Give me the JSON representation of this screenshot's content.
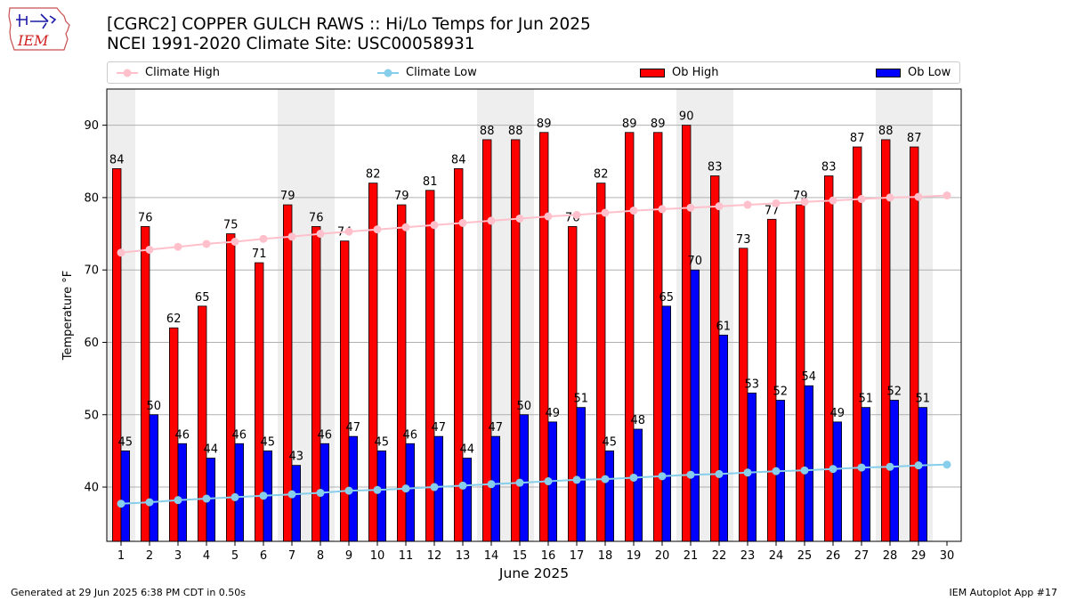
{
  "header": {
    "title_line1": "[CGRC2] COPPER GULCH RAWS :: Hi/Lo Temps for Jun 2025",
    "title_line2": "NCEI 1991-2020 Climate Site: USC00058931",
    "logo_text": "IEM"
  },
  "footer": {
    "generated": "Generated at 29 Jun 2025 6:38 PM CDT in 0.50s",
    "app": "IEM Autoplot App #17"
  },
  "legend": {
    "climate_high": "Climate High",
    "climate_low": "Climate Low",
    "ob_high": "Ob High",
    "ob_low": "Ob Low"
  },
  "colors": {
    "ob_high": "#ff0000",
    "ob_low": "#0000ff",
    "climate_high": "#ffc0cb",
    "climate_low": "#87ceeb",
    "weekend_band": "#eeeeee",
    "grid": "#b0b0b0"
  },
  "chart_data": {
    "type": "bar",
    "title": "[CGRC2] COPPER GULCH RAWS :: Hi/Lo Temps for Jun 2025",
    "subtitle": "NCEI 1991-2020 Climate Site: USC00058931",
    "xlabel": "June 2025",
    "ylabel": "Temperature °F",
    "ylim": [
      32.5,
      95
    ],
    "yticks": [
      40,
      50,
      60,
      70,
      80,
      90
    ],
    "grid": true,
    "legend_position": "top",
    "categories": [
      "1",
      "2",
      "3",
      "4",
      "5",
      "6",
      "7",
      "8",
      "9",
      "10",
      "11",
      "12",
      "13",
      "14",
      "15",
      "16",
      "17",
      "18",
      "19",
      "20",
      "21",
      "22",
      "23",
      "24",
      "25",
      "26",
      "27",
      "28",
      "29",
      "30"
    ],
    "weekend_days": [
      1,
      7,
      8,
      14,
      15,
      21,
      22,
      28,
      29
    ],
    "series": [
      {
        "name": "Ob High",
        "kind": "bar",
        "values": [
          84,
          76,
          62,
          65,
          75,
          71,
          79,
          76,
          74,
          82,
          79,
          81,
          84,
          88,
          88,
          89,
          76,
          82,
          89,
          89,
          90,
          83,
          73,
          77,
          79,
          83,
          87,
          88,
          87,
          null
        ]
      },
      {
        "name": "Ob Low",
        "kind": "bar",
        "values": [
          45,
          50,
          46,
          44,
          46,
          45,
          43,
          46,
          47,
          45,
          46,
          47,
          44,
          47,
          50,
          49,
          51,
          45,
          48,
          65,
          70,
          61,
          53,
          52,
          54,
          49,
          51,
          52,
          51,
          null
        ]
      },
      {
        "name": "Climate High",
        "kind": "line",
        "values": [
          72.4,
          72.8,
          73.2,
          73.6,
          73.9,
          74.3,
          74.6,
          75.0,
          75.3,
          75.6,
          75.9,
          76.2,
          76.5,
          76.8,
          77.1,
          77.4,
          77.6,
          77.9,
          78.2,
          78.4,
          78.6,
          78.8,
          79.0,
          79.2,
          79.4,
          79.6,
          79.8,
          80.0,
          80.1,
          80.3
        ]
      },
      {
        "name": "Climate Low",
        "kind": "line",
        "values": [
          37.7,
          37.9,
          38.2,
          38.4,
          38.6,
          38.8,
          39.0,
          39.2,
          39.5,
          39.6,
          39.8,
          40.0,
          40.2,
          40.4,
          40.6,
          40.8,
          41.0,
          41.1,
          41.3,
          41.5,
          41.7,
          41.8,
          42.0,
          42.2,
          42.3,
          42.5,
          42.7,
          42.8,
          43.0,
          43.1
        ]
      }
    ]
  }
}
